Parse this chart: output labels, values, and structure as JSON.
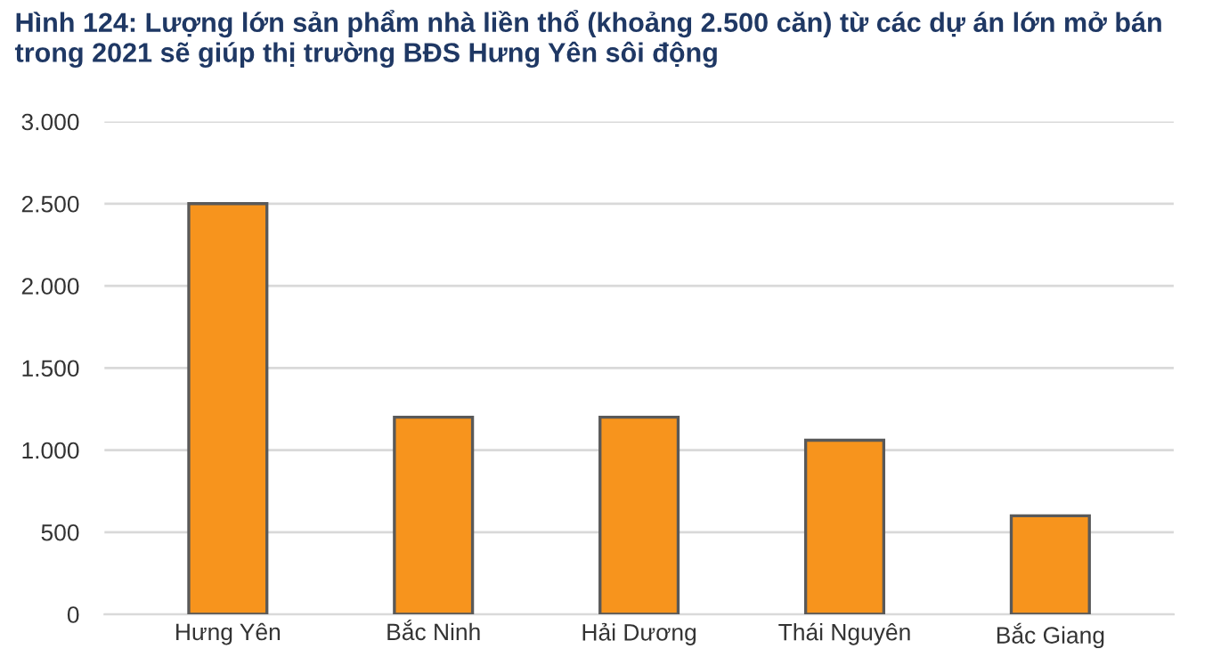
{
  "chart_data": {
    "type": "bar",
    "title": "Hình 124: Lượng lớn sản phẩm nhà liền thổ (khoảng 2.500 căn) từ các dự án lớn mở bán trong 2021 sẽ giúp thị trường BĐS Hưng Yên sôi động",
    "categories": [
      "Hưng Yên",
      "Bắc Ninh",
      "Hải Dương",
      "Thái Nguyên",
      "Bắc Giang"
    ],
    "values": [
      2500,
      1200,
      1200,
      1060,
      600
    ],
    "color": "#f7941d",
    "ylim": [
      0,
      3000
    ],
    "yticks": [
      0,
      {
        "value": 500,
        "label": "500"
      },
      {
        "value": 1000,
        "label": "1.000"
      },
      {
        "value": 1500,
        "label": "1.500"
      },
      {
        "value": 2000,
        "label": "2.000"
      },
      {
        "value": 2500,
        "label": "2.500"
      },
      {
        "value": 3000,
        "label": "3.000"
      }
    ],
    "grid": "y"
  }
}
